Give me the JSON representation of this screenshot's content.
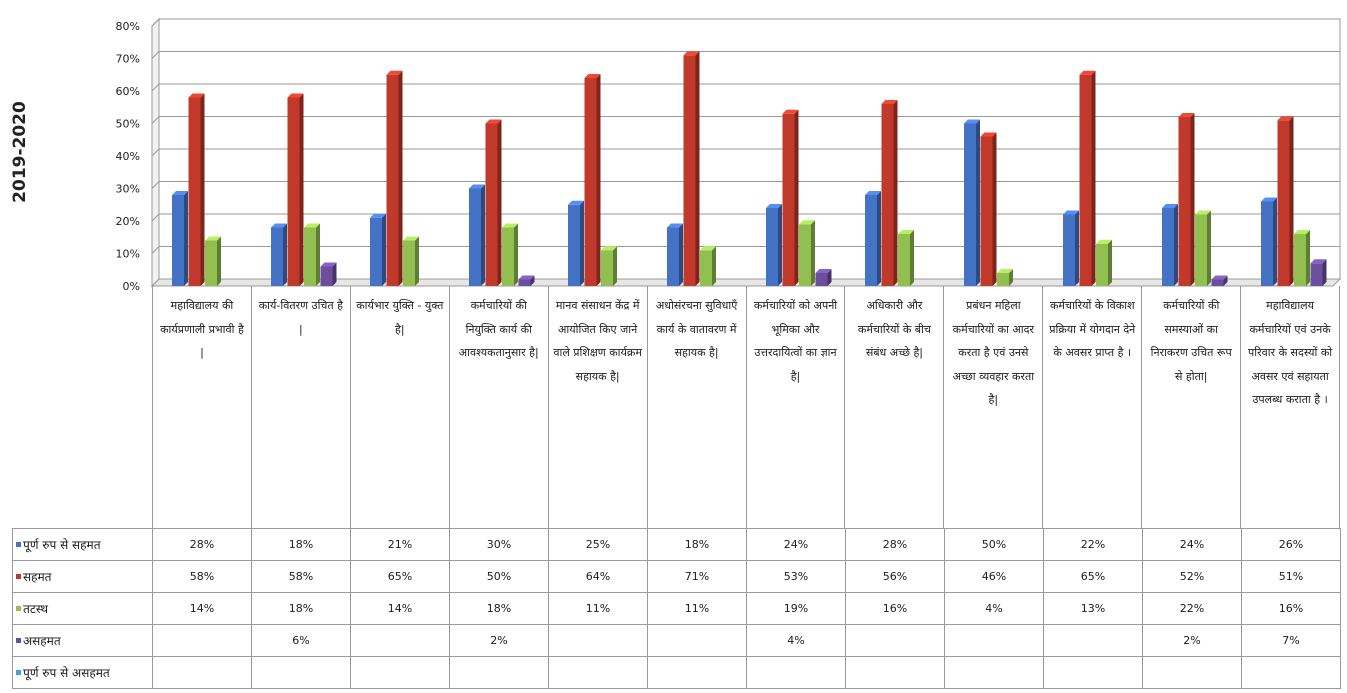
{
  "year_label": "2019-2020",
  "chart_data": {
    "type": "bar",
    "title": "",
    "xlabel": "",
    "ylabel": "",
    "ylim": [
      0,
      80
    ],
    "y_ticks": [
      "0%",
      "10%",
      "20%",
      "30%",
      "40%",
      "50%",
      "60%",
      "70%",
      "80%"
    ],
    "grid": true,
    "legend": "table-below",
    "categories": [
      "महाविद्यालय की कार्यप्रणाली प्रभावी है |",
      "कार्य-वितरण उचित है |",
      "कार्यभार युक्ति - युक्त है|",
      "कर्मचारियों की नियुक्ति कार्य की आवश्यकतानुसार है|",
      "मानव संसाधन केंद्र में आयोजित किए जाने वाले प्रशिक्षण कार्यक्रम सहायक है|",
      "अधोसंरचना सुविधाएँ कार्य के वातावरण में सहायक है|",
      "कर्मचारियों को अपनी भूमिका और उत्तरदायित्वों का ज्ञान है|",
      "अधिकारी और कर्मचारियों के बीच संबंध अच्छे है|",
      "प्रबंधन महिला कर्मचारियों का आदर करता है एवं उनसे अच्छा व्यवहार करता है|",
      "कर्मचारियों के विकाश प्रक्रिया में योगदान देने के अवसर प्राप्त है ।",
      "कर्मचारियों की समस्याओं का निराकरण उचित रूप से होता|",
      "महाविद्यालय कर्मचारियों एवं उनके परिवार के सदस्यों को अवसर एवं सहायता उपलब्ध कराता है ।"
    ],
    "series": [
      {
        "name": "पूर्ण रुप से सहमत",
        "color": "#4472c4",
        "values": [
          28,
          18,
          21,
          30,
          25,
          18,
          24,
          28,
          50,
          22,
          24,
          26
        ],
        "labels": [
          "28%",
          "18%",
          "21%",
          "30%",
          "25%",
          "18%",
          "24%",
          "28%",
          "50%",
          "22%",
          "24%",
          "26%"
        ]
      },
      {
        "name": "सहमत",
        "color": "#c0392b",
        "values": [
          58,
          58,
          65,
          50,
          64,
          71,
          53,
          56,
          46,
          65,
          52,
          51
        ],
        "labels": [
          "58%",
          "58%",
          "65%",
          "50%",
          "64%",
          "71%",
          "53%",
          "56%",
          "46%",
          "65%",
          "52%",
          "51%"
        ]
      },
      {
        "name": "तटस्थ",
        "color": "#92c050",
        "values": [
          14,
          18,
          14,
          18,
          11,
          11,
          19,
          16,
          4,
          13,
          22,
          16
        ],
        "labels": [
          "14%",
          "18%",
          "14%",
          "18%",
          "11%",
          "11%",
          "19%",
          "16%",
          "4%",
          "13%",
          "22%",
          "16%"
        ]
      },
      {
        "name": "असहमत",
        "color": "#6b4f9e",
        "values": [
          null,
          6,
          null,
          2,
          null,
          null,
          4,
          null,
          null,
          null,
          2,
          7
        ],
        "labels": [
          "",
          "6%",
          "",
          "2%",
          "",
          "",
          "4%",
          "",
          "",
          "",
          "2%",
          "7%"
        ]
      },
      {
        "name": "पूर्ण रुप से असहमत",
        "color": "#3aa6d8",
        "values": [
          null,
          null,
          null,
          null,
          null,
          null,
          null,
          null,
          null,
          null,
          null,
          null
        ],
        "labels": [
          "",
          "",
          "",
          "",
          "",
          "",
          "",
          "",
          "",
          "",
          "",
          ""
        ]
      }
    ]
  }
}
